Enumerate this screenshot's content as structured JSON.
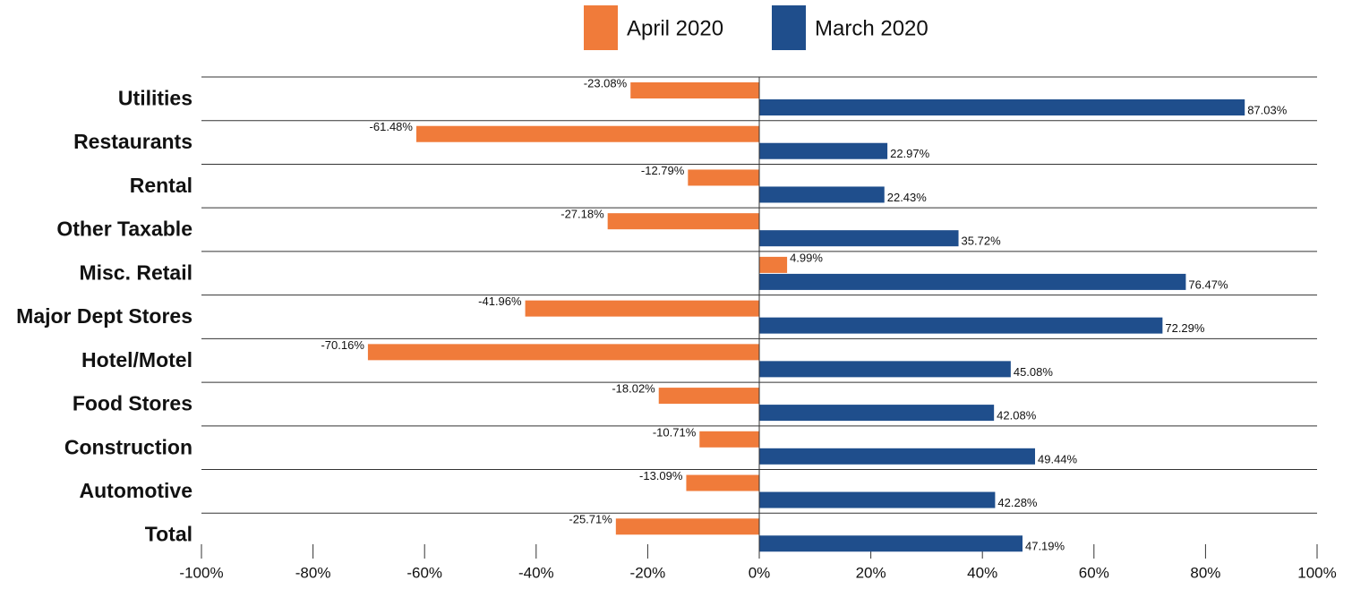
{
  "chart_data": {
    "type": "hbar",
    "categories": [
      "Utilities",
      "Restaurants",
      "Rental",
      "Other Taxable",
      "Misc. Retail",
      "Major Dept Stores",
      "Hotel/Motel",
      "Food Stores",
      "Construction",
      "Automotive",
      "Total"
    ],
    "series": [
      {
        "name": "April 2020",
        "color": "#f07b3a",
        "values": [
          -23.08,
          -61.48,
          -12.79,
          -27.18,
          4.99,
          -41.96,
          -70.16,
          -18.02,
          -10.71,
          -13.09,
          -25.71
        ],
        "value_labels": [
          "-23.08%",
          "-61.48%",
          "-12.79%",
          "-27.18%",
          "4.99%",
          "-41.96%",
          "-70.16%",
          "-18.02%",
          "-10.71%",
          "-13.09%",
          "-25.71%"
        ]
      },
      {
        "name": "March 2020",
        "color": "#1f4e8c",
        "values": [
          87.03,
          22.97,
          22.43,
          35.72,
          76.47,
          72.29,
          45.08,
          42.08,
          49.44,
          42.28,
          47.19
        ],
        "value_labels": [
          "87.03%",
          "22.97%",
          "22.43%",
          "35.72%",
          "76.47%",
          "72.29%",
          "45.08%",
          "42.08%",
          "49.44%",
          "42.28%",
          "47.19%"
        ]
      }
    ],
    "xlim": [
      -100,
      100
    ],
    "xticks": [
      {
        "value": -100,
        "label": "-100%"
      },
      {
        "value": -80,
        "label": "-80%"
      },
      {
        "value": -60,
        "label": "-60%"
      },
      {
        "value": -40,
        "label": "-40%"
      },
      {
        "value": -20,
        "label": "-20%"
      },
      {
        "value": 0,
        "label": "0%"
      },
      {
        "value": 20,
        "label": "20%"
      },
      {
        "value": 40,
        "label": "40%"
      },
      {
        "value": 60,
        "label": "60%"
      },
      {
        "value": 80,
        "label": "80%"
      },
      {
        "value": 100,
        "label": "100%"
      }
    ],
    "legend": "top"
  }
}
